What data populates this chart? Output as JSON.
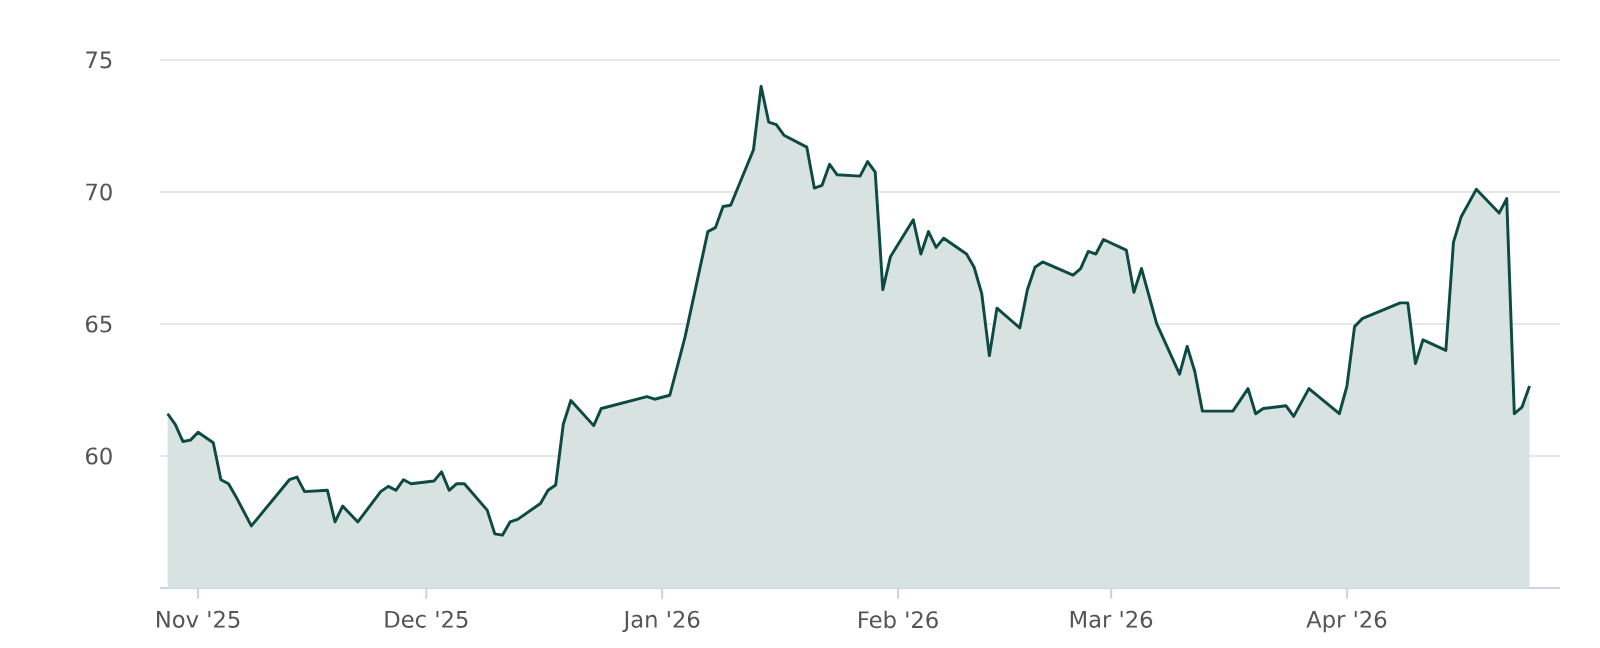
{
  "chart_data": {
    "type": "area",
    "color": "#0e4a44",
    "x": [
      "2025-10-28",
      "2025-10-29",
      "2025-10-30",
      "2025-10-31",
      "2025-11-01",
      "2025-11-03",
      "2025-11-04",
      "2025-11-05",
      "2025-11-06",
      "2025-11-08",
      "2025-11-11",
      "2025-11-13",
      "2025-11-14",
      "2025-11-15",
      "2025-11-18",
      "2025-11-19",
      "2025-11-20",
      "2025-11-22",
      "2025-11-25",
      "2025-11-26",
      "2025-11-27",
      "2025-11-28",
      "2025-11-29",
      "2025-12-02",
      "2025-12-03",
      "2025-12-04",
      "2025-12-05",
      "2025-12-06",
      "2025-12-09",
      "2025-12-10",
      "2025-12-11",
      "2025-12-12",
      "2025-12-13",
      "2025-12-16",
      "2025-12-17",
      "2025-12-18",
      "2025-12-19",
      "2025-12-20",
      "2025-12-23",
      "2025-12-24",
      "2025-12-30",
      "2025-12-31",
      "2026-01-02",
      "2026-01-04",
      "2026-01-07",
      "2026-01-08",
      "2026-01-09",
      "2026-01-10",
      "2026-01-13",
      "2026-01-14",
      "2026-01-15",
      "2026-01-16",
      "2026-01-17",
      "2026-01-20",
      "2026-01-21",
      "2026-01-22",
      "2026-01-23",
      "2026-01-24",
      "2026-01-27",
      "2026-01-28",
      "2026-01-29",
      "2026-01-30",
      "2026-01-31",
      "2026-02-03",
      "2026-02-04",
      "2026-02-05",
      "2026-02-06",
      "2026-02-07",
      "2026-02-10",
      "2026-02-11",
      "2026-02-12",
      "2026-02-13",
      "2026-02-14",
      "2026-02-17",
      "2026-02-18",
      "2026-02-19",
      "2026-02-20",
      "2026-02-24",
      "2026-02-25",
      "2026-02-26",
      "2026-02-27",
      "2026-02-28",
      "2026-03-03",
      "2026-03-04",
      "2026-03-05",
      "2026-03-07",
      "2026-03-10",
      "2026-03-11",
      "2026-03-12",
      "2026-03-13",
      "2026-03-17",
      "2026-03-19",
      "2026-03-20",
      "2026-03-21",
      "2026-03-24",
      "2026-03-25",
      "2026-03-27",
      "2026-03-31",
      "2026-04-01",
      "2026-04-02",
      "2026-04-03",
      "2026-04-08",
      "2026-04-09",
      "2026-04-10",
      "2026-04-11",
      "2026-04-14",
      "2026-04-15",
      "2026-04-16",
      "2026-04-18",
      "2026-04-21",
      "2026-04-22",
      "2026-04-23",
      "2026-04-24",
      "2026-04-25"
    ],
    "values": [
      61.6,
      61.2,
      60.55,
      60.6,
      60.9,
      60.5,
      59.1,
      58.95,
      58.45,
      57.35,
      58.4,
      59.1,
      59.2,
      58.65,
      58.7,
      57.5,
      58.1,
      57.5,
      58.65,
      58.85,
      58.7,
      59.1,
      58.95,
      59.05,
      59.4,
      58.7,
      58.95,
      58.95,
      57.95,
      57.05,
      57.0,
      57.5,
      57.6,
      58.2,
      58.7,
      58.9,
      61.2,
      62.1,
      61.15,
      61.8,
      62.25,
      62.15,
      62.3,
      64.5,
      68.5,
      68.65,
      69.45,
      69.5,
      71.6,
      74.0,
      72.65,
      72.55,
      72.15,
      71.7,
      70.15,
      70.25,
      71.05,
      70.65,
      70.6,
      71.15,
      70.75,
      66.3,
      67.55,
      68.95,
      67.65,
      68.5,
      67.9,
      68.25,
      67.65,
      67.15,
      66.15,
      63.8,
      65.6,
      64.85,
      66.3,
      67.15,
      67.35,
      66.85,
      67.1,
      67.75,
      67.65,
      68.2,
      67.8,
      66.2,
      67.1,
      65.0,
      63.1,
      64.15,
      63.2,
      61.7,
      61.7,
      62.55,
      61.6,
      61.8,
      61.9,
      61.5,
      62.55,
      61.6,
      62.65,
      64.9,
      65.2,
      65.8,
      65.8,
      63.5,
      64.4,
      64.0,
      68.1,
      69.05,
      70.1,
      69.2,
      69.75,
      61.6,
      61.85,
      62.65
    ],
    "xlim": [
      "2025-10-27",
      "2026-04-29"
    ],
    "ylim": [
      55,
      75
    ],
    "xticks": [
      {
        "value": "2025-11-01",
        "label": "Nov '25"
      },
      {
        "value": "2025-12-01",
        "label": "Dec '25"
      },
      {
        "value": "2026-01-01",
        "label": "Jan '26"
      },
      {
        "value": "2026-02-01",
        "label": "Feb '26"
      },
      {
        "value": "2026-03-01",
        "label": "Mar '26"
      },
      {
        "value": "2026-04-01",
        "label": "Apr '26"
      }
    ],
    "yticks": [
      60,
      65,
      70,
      75
    ],
    "grid": "y"
  }
}
